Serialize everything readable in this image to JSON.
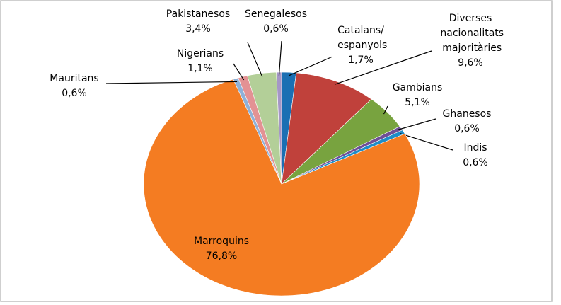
{
  "chart_data": {
    "type": "pie",
    "categories": [
      "Catalans/ espanyols",
      "Diverses nacionalitats majoritàries",
      "Gambians",
      "Ghanesos",
      "Indis",
      "Marroquins",
      "Mauritans",
      "Nigerians",
      "Pakistanesos",
      "Senegalesos"
    ],
    "values": [
      1.7,
      9.6,
      5.1,
      0.6,
      0.6,
      76.8,
      0.6,
      1.1,
      3.4,
      0.6
    ],
    "value_labels": [
      "1,7%",
      "9,6%",
      "5,1%",
      "0,6%",
      "0,6%",
      "76,8%",
      "0,6%",
      "1,1%",
      "3,4%",
      "0,6%"
    ],
    "colors": [
      "#1b6fb3",
      "#c0413b",
      "#78a33f",
      "#6f4f97",
      "#1e8dc8",
      "#f47c22",
      "#8fb1d8",
      "#e39294",
      "#b3cf98",
      "#a597c6"
    ]
  }
}
